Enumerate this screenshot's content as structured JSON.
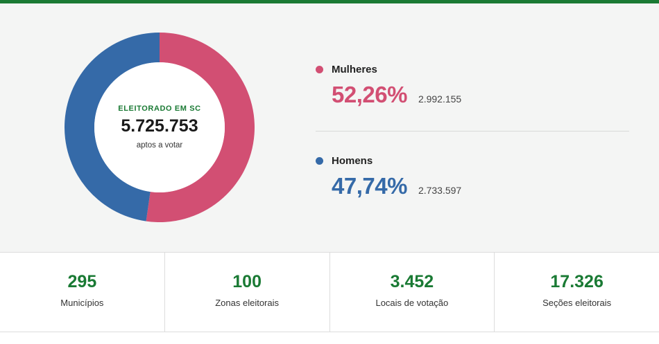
{
  "colors": {
    "accent_green": "#1a7a34",
    "women": "#d24f73",
    "men": "#356aa8"
  },
  "center": {
    "kicker": "ELEITORADO EM SC",
    "value": "5.725.753",
    "sub": "aptos a votar"
  },
  "legend": {
    "women": {
      "name": "Mulheres",
      "pct": "52,26%",
      "count": "2.992.155"
    },
    "men": {
      "name": "Homens",
      "pct": "47,74%",
      "count": "2.733.597"
    }
  },
  "stats": [
    {
      "value": "295",
      "label": "Municípios"
    },
    {
      "value": "100",
      "label": "Zonas eleitorais"
    },
    {
      "value": "3.452",
      "label": "Locais de votação"
    },
    {
      "value": "17.326",
      "label": "Seções eleitorais"
    }
  ],
  "chart_data": {
    "type": "pie",
    "style": "donut",
    "categories": [
      "Mulheres",
      "Homens"
    ],
    "values": [
      52.26,
      47.74
    ],
    "counts": [
      2992155,
      2733597
    ],
    "total": 5725753,
    "colors": [
      "#d24f73",
      "#356aa8"
    ]
  }
}
